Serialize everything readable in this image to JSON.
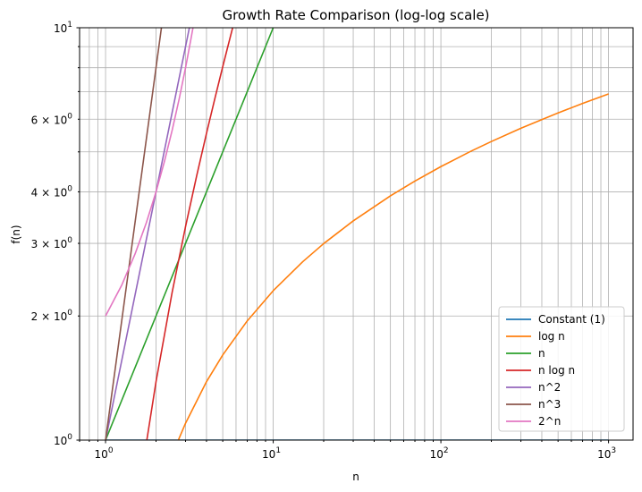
{
  "chart_data": {
    "type": "line",
    "title": "Growth Rate Comparison (log-log scale)",
    "xlabel": "n",
    "ylabel": "f(n)",
    "xscale": "log",
    "yscale": "log",
    "xlim": [
      0.7,
      1400
    ],
    "ylim": [
      1,
      10
    ],
    "grid": "on (major and minor)",
    "legend_position": "lower-right",
    "x_ticks": [
      {
        "value": 1,
        "base": "10",
        "exp": "0"
      },
      {
        "value": 10,
        "base": "10",
        "exp": "1"
      },
      {
        "value": 100,
        "base": "10",
        "exp": "2"
      },
      {
        "value": 1000,
        "base": "10",
        "exp": "3"
      }
    ],
    "y_ticks": [
      {
        "value": 1,
        "mant": "",
        "base": "10",
        "exp": "0"
      },
      {
        "value": 2,
        "mant": "2 × ",
        "base": "10",
        "exp": "0"
      },
      {
        "value": 3,
        "mant": "3 × ",
        "base": "10",
        "exp": "0"
      },
      {
        "value": 4,
        "mant": "4 × ",
        "base": "10",
        "exp": "0"
      },
      {
        "value": 6,
        "mant": "6 × ",
        "base": "10",
        "exp": "0"
      },
      {
        "value": 10,
        "mant": "",
        "base": "10",
        "exp": "1"
      }
    ],
    "series": [
      {
        "name": "Constant (1)",
        "color": "#1f77b4",
        "points": [
          [
            1,
            1
          ],
          [
            10,
            1
          ],
          [
            100,
            1
          ],
          [
            1000,
            1
          ]
        ]
      },
      {
        "name": "log n",
        "color": "#ff7f0e",
        "points": [
          [
            2.718,
            1.0
          ],
          [
            3,
            1.099
          ],
          [
            4,
            1.386
          ],
          [
            5,
            1.609
          ],
          [
            7,
            1.946
          ],
          [
            10,
            2.303
          ],
          [
            15,
            2.708
          ],
          [
            20,
            2.996
          ],
          [
            30,
            3.401
          ],
          [
            50,
            3.912
          ],
          [
            70,
            4.248
          ],
          [
            100,
            4.605
          ],
          [
            150,
            5.011
          ],
          [
            200,
            5.298
          ],
          [
            300,
            5.704
          ],
          [
            500,
            6.215
          ],
          [
            700,
            6.551
          ],
          [
            1000,
            6.908
          ]
        ]
      },
      {
        "name": "n",
        "color": "#2ca02c",
        "points": [
          [
            1,
            1
          ],
          [
            10,
            10
          ]
        ]
      },
      {
        "name": "n log n",
        "color": "#d62728",
        "points": [
          [
            1.763,
            1.0
          ],
          [
            2,
            1.386
          ],
          [
            2.5,
            2.291
          ],
          [
            3,
            3.296
          ],
          [
            3.5,
            4.385
          ],
          [
            4,
            5.545
          ],
          [
            4.5,
            6.768
          ],
          [
            5,
            8.047
          ],
          [
            5.5,
            9.376
          ],
          [
            5.75,
            10.06
          ]
        ]
      },
      {
        "name": "n^2",
        "color": "#9467bd",
        "points": [
          [
            1,
            1
          ],
          [
            3.162,
            10
          ]
        ]
      },
      {
        "name": "n^3",
        "color": "#8c564b",
        "points": [
          [
            1,
            1
          ],
          [
            2.154,
            10
          ]
        ]
      },
      {
        "name": "2^n",
        "color": "#e377c2",
        "points": [
          [
            1,
            2
          ],
          [
            1.25,
            2.378
          ],
          [
            1.5,
            2.828
          ],
          [
            1.75,
            3.364
          ],
          [
            2,
            4
          ],
          [
            2.25,
            4.757
          ],
          [
            2.5,
            5.657
          ],
          [
            2.75,
            6.727
          ],
          [
            3,
            8
          ],
          [
            3.25,
            9.514
          ],
          [
            3.322,
            10
          ]
        ]
      }
    ]
  }
}
